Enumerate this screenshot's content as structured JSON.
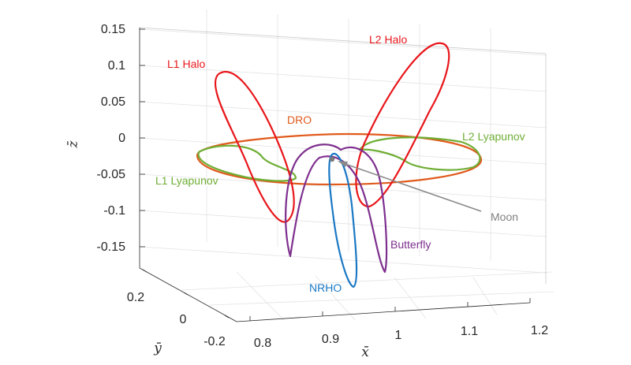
{
  "chart_data": {
    "type": "line",
    "projection": "3d",
    "axes": {
      "x": {
        "label": "x̄",
        "ticks": [
          "0.8",
          "0.9",
          "1",
          "1.1",
          "1.2"
        ]
      },
      "y": {
        "label": "ȳ",
        "ticks": [
          "0.2",
          "0",
          "-0.2"
        ]
      },
      "z": {
        "label": "z̄",
        "ticks": [
          "0.15",
          "0.1",
          "0.05",
          "0",
          "-0.05",
          "-0.1",
          "-0.15"
        ]
      }
    },
    "grid": true,
    "series": [
      {
        "name": "L1 Halo",
        "color": "#e8161b"
      },
      {
        "name": "L2 Halo",
        "color": "#e8161b"
      },
      {
        "name": "DRO",
        "color": "#e05a1c"
      },
      {
        "name": "L1 Lyapunov",
        "color": "#6fae35"
      },
      {
        "name": "L2 Lyapunov",
        "color": "#6fae35"
      },
      {
        "name": "NRHO",
        "color": "#1a78c4"
      },
      {
        "name": "Butterfly",
        "color": "#7e2f8e"
      }
    ],
    "annotations": [
      {
        "text": "Moon",
        "color": "#808080"
      }
    ]
  }
}
